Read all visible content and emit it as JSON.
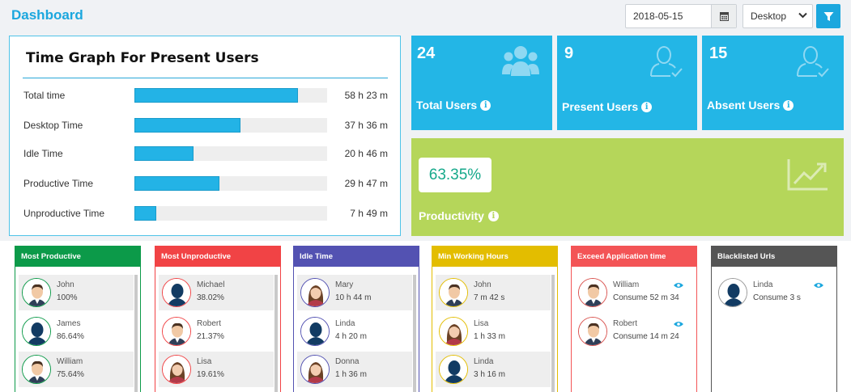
{
  "header": {
    "title": "Dashboard",
    "date_value": "2018-05-15",
    "device_select": "Desktop"
  },
  "time_graph": {
    "title": "Time Graph For Present Users",
    "rows": [
      {
        "label": "Total time",
        "value": "58 h 23 m",
        "fraction": 0.85
      },
      {
        "label": "Desktop Time",
        "value": "37 h 36 m",
        "fraction": 0.55
      },
      {
        "label": "Idle Time",
        "value": "20 h 46 m",
        "fraction": 0.305
      },
      {
        "label": "Productive Time",
        "value": "29 h 47 m",
        "fraction": 0.44
      },
      {
        "label": "Unproductive Time",
        "value": "7 h 49 m",
        "fraction": 0.115
      }
    ]
  },
  "stats": {
    "total_users": {
      "count": "24",
      "label": "Total Users"
    },
    "present_users": {
      "count": "9",
      "label": "Present Users"
    },
    "absent_users": {
      "count": "15",
      "label": "Absent Users"
    },
    "productivity": {
      "value": "63.35%",
      "label": "Productivity"
    }
  },
  "colors": {
    "accent": "#1ba7de",
    "most_productive": "#0c9a49",
    "most_unproductive": "#f14345",
    "idle_time": "#5352b2",
    "min_working_hours": "#e3bd00",
    "exceed_app_time": "#f35456",
    "blacklisted_urls": "#555555"
  },
  "panels": {
    "most_productive": {
      "title": "Most Productive",
      "items": [
        {
          "name": "John",
          "value": "100%"
        },
        {
          "name": "James",
          "value": "86.64%"
        },
        {
          "name": "William",
          "value": "75.64%"
        }
      ]
    },
    "most_unproductive": {
      "title": "Most Unproductive",
      "items": [
        {
          "name": "Michael",
          "value": "38.02%"
        },
        {
          "name": "Robert",
          "value": "21.37%"
        },
        {
          "name": "Lisa",
          "value": "19.61%"
        }
      ]
    },
    "idle_time": {
      "title": "Idle Time",
      "items": [
        {
          "name": "Mary",
          "value": "10 h 44 m"
        },
        {
          "name": "Linda",
          "value": "4 h 20 m"
        },
        {
          "name": "Donna",
          "value": "1 h 36 m"
        }
      ]
    },
    "min_working_hours": {
      "title": "Min Working Hours",
      "items": [
        {
          "name": "John",
          "value": "7 m 42 s"
        },
        {
          "name": "Lisa",
          "value": "1 h 33 m"
        },
        {
          "name": "Linda",
          "value": "3 h 16 m"
        }
      ]
    },
    "exceed_app_time": {
      "title": "Exceed Application time",
      "items": [
        {
          "name": "William",
          "value": "Consume 52 m 34"
        },
        {
          "name": "Robert",
          "value": "Consume 14 m 24"
        }
      ]
    },
    "blacklisted_urls": {
      "title": "Blacklisted Urls",
      "items": [
        {
          "name": "Linda",
          "value": "Consume 3 s"
        }
      ]
    }
  }
}
